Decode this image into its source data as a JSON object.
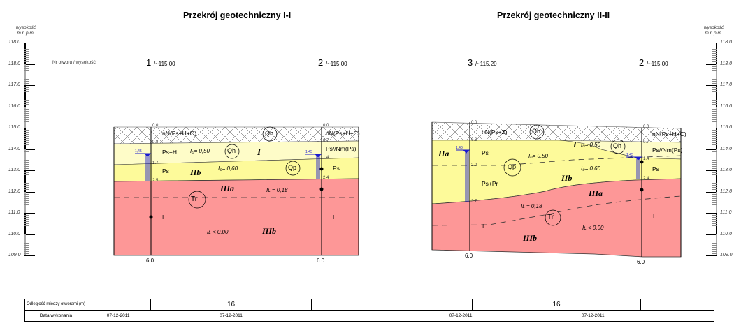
{
  "sections": [
    {
      "title": "Przekrój geotechniczny I-I",
      "header_label": "Nr otworu / wysokość",
      "boreholes": [
        {
          "no": "1",
          "elevation": "/~115,00",
          "bottom_depth": "6.0",
          "depth_marks": [
            "0.0",
            "0.8",
            "1.7",
            "2.5"
          ],
          "water_level": "1,45"
        },
        {
          "no": "2",
          "elevation": "/~115,00",
          "bottom_depth": "6.0",
          "depth_marks": [
            "0.0",
            "0.7",
            "1.4",
            "2.4"
          ],
          "water_level": "1,45"
        }
      ],
      "soil_labels": {
        "fill": "nN(Ps+H+O)",
        "fill_right": "nN(Ps+H+C)",
        "layer1_left": "Ps+H",
        "layer1_right": "Ps//Nm(Ps)",
        "layer2_left": "Ps",
        "layer2_right": "Ps",
        "id1": "I₀= 0,50",
        "id2": "I₀= 0,60",
        "il1": "Iʟ = 0,18",
        "il2": "Iʟ < 0,00",
        "geo_I": "I",
        "geo_IIb": "IIb",
        "geo_IIIa": "IIIa",
        "geo_IIIb": "IIIb",
        "strat_Qh1": "Qh",
        "strat_Qh2": "Qh",
        "strat_Qp": "Qp",
        "strat_Tr": "Tr",
        "consistency_left": "I",
        "consistency_right": "I"
      }
    },
    {
      "title": "Przekrój geotechniczny II-II",
      "boreholes": [
        {
          "no": "3",
          "elevation": "/~115,20",
          "bottom_depth": "6.0",
          "depth_marks": [
            "0.0",
            "0.8",
            "2.0",
            "3.7"
          ],
          "water_level": "1,40"
        },
        {
          "no": "2",
          "elevation": "/~115,00",
          "bottom_depth": "6.0",
          "depth_marks": [
            "0.0",
            "0.7",
            "1.4",
            "2.4"
          ],
          "water_level": "1,45"
        }
      ],
      "soil_labels": {
        "fill_left": "nN(Ps+Z)",
        "fill_right": "nN(Ps+H+C)",
        "layer1_left": "Ps",
        "layer1b_left": "Ps+Pr",
        "layer1_right": "Ps//Nm(Ps)",
        "layer2_right": "Ps",
        "id1": "I₀= 0,50",
        "id1b": "I₀= 0,50",
        "id2": "I₀= 0,60",
        "il1": "Iʟ = 0,18",
        "il2": "Iʟ < 0,00",
        "geo_IIa": "IIa",
        "geo_I": "I",
        "geo_IIb": "IIb",
        "geo_IIIa": "IIIa",
        "geo_IIIb": "IIIb",
        "strat_Qh": "Qh",
        "strat_Qh2": "Qh",
        "strat_Qp": "Qp",
        "strat_Tr": "Tr",
        "consistency_left": "I",
        "consistency_right": "I"
      }
    }
  ],
  "axis": {
    "title_line1": "wysokość",
    "title_line2": "m n.p.m.",
    "ticks_left": [
      "118.0",
      "118.0",
      "117.0",
      "116.0",
      "115.0",
      "114.0",
      "113.0",
      "112.0",
      "111.0",
      "110.0",
      "109.0"
    ],
    "ticks_right": [
      "118.0",
      "118.0",
      "117.0",
      "116.0",
      "115.0",
      "114.0",
      "113.0",
      "112.0",
      "111.0",
      "110.0",
      "109.0"
    ]
  },
  "info_table": {
    "row1_label": "Odległość między otworami (m)",
    "row2_label": "Data wykonania",
    "distances": [
      "16",
      "16"
    ],
    "dates": [
      "07-12-2011",
      "07-12-2011",
      "07-12-2011",
      "07-12-2011"
    ]
  },
  "colors": {
    "fill_hatch": "#ffffff",
    "layer_light_yellow": "#fefcc8",
    "layer_yellow": "#fdfa9a",
    "layer_red": "#fd9797",
    "water": "#1a1ad0"
  }
}
